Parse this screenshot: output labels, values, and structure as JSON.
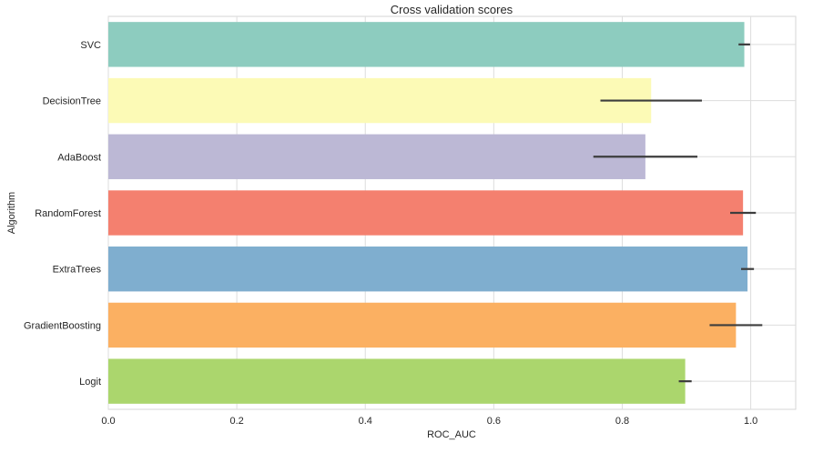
{
  "chart_data": {
    "type": "bar",
    "orientation": "horizontal",
    "title": "Cross validation scores",
    "xlabel": "ROC_AUC",
    "ylabel": "Algorithm",
    "xlim": [
      0,
      1.07
    ],
    "xticks": [
      0.0,
      0.2,
      0.4,
      0.6,
      0.8,
      1.0
    ],
    "xtick_labels": [
      "0.0",
      "0.2",
      "0.4",
      "0.6",
      "0.8",
      "1.0"
    ],
    "grid": true,
    "categories": [
      "SVC",
      "DecisionTree",
      "AdaBoost",
      "RandomForest",
      "ExtraTrees",
      "GradientBoosting",
      "Logit"
    ],
    "values": [
      0.99,
      0.845,
      0.836,
      0.988,
      0.995,
      0.977,
      0.898
    ],
    "errors": [
      0.009,
      0.079,
      0.081,
      0.02,
      0.01,
      0.041,
      0.01
    ],
    "colors": [
      "#8dccbf",
      "#fcfab6",
      "#bcb8d5",
      "#f4806f",
      "#7faecf",
      "#fbb062",
      "#abd66d"
    ]
  }
}
